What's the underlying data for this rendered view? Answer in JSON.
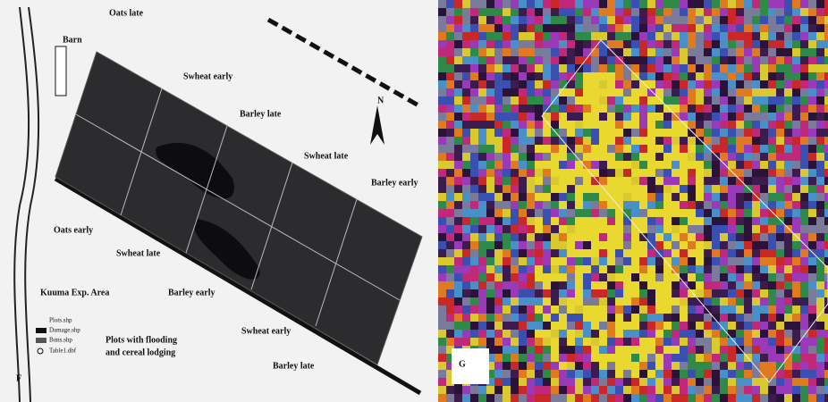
{
  "panels": [
    {
      "label": "F",
      "map_labels": [
        "Barn",
        "Oats late",
        "Swheat early",
        "Barley late",
        "Swheat late",
        "Barley early",
        "N",
        "Oats early",
        "Swheat late",
        "Kuuma Exp. Area",
        "Barley early",
        "Swheat early",
        "Barley late"
      ],
      "legend": {
        "items": [
          "Plots.shp",
          "Damage.shp",
          "Buns.shp",
          "Table1.dbf"
        ],
        "note": [
          "Plots with flooding",
          "and cereal lodging"
        ]
      }
    },
    {
      "label": "G"
    }
  ]
}
